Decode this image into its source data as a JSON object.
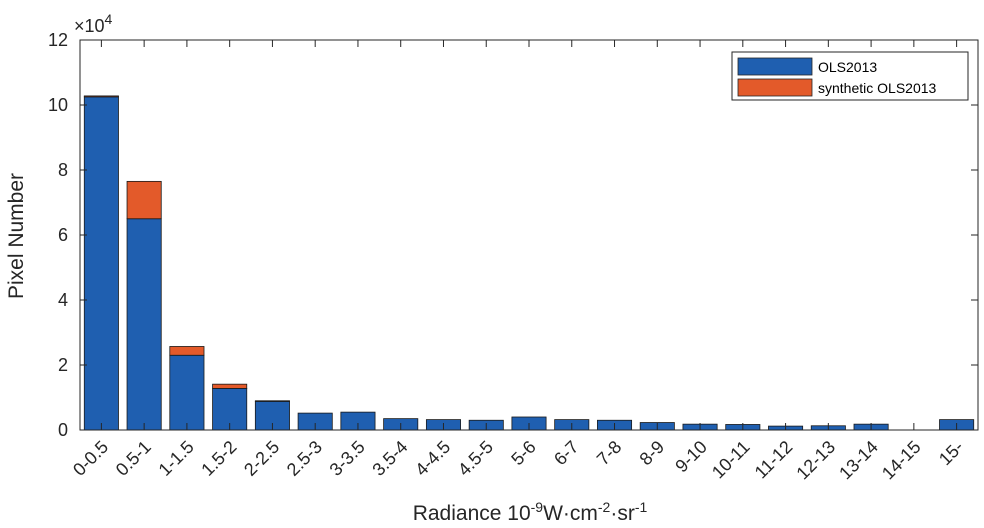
{
  "chart_data": {
    "type": "bar",
    "stacked": true,
    "categories": [
      "0-0.5",
      "0.5-1",
      "1-1.5",
      "1.5-2",
      "2-2.5",
      "2.5-3",
      "3-3.5",
      "3.5-4",
      "4-4.5",
      "4.5-5",
      "5-6",
      "6-7",
      "7-8",
      "8-9",
      "9-10",
      "10-11",
      "11-12",
      "12-13",
      "13-14",
      "14-15",
      "15-"
    ],
    "series": [
      {
        "name": "OLS2013",
        "color": "#1f5fb0",
        "values": [
          10.25,
          6.5,
          2.3,
          1.28,
          0.88,
          0.52,
          0.55,
          0.35,
          0.32,
          0.3,
          0.4,
          0.32,
          0.3,
          0.23,
          0.18,
          0.17,
          0.12,
          0.13,
          0.18,
          0,
          0.32
        ]
      },
      {
        "name": "synthetic OLS2013",
        "color": "#e35a2a",
        "values": [
          0.03,
          1.15,
          0.27,
          0.13,
          0.02,
          0,
          0,
          0,
          0,
          0,
          0,
          0,
          0,
          0,
          0,
          0,
          0,
          0,
          0,
          0,
          0
        ]
      }
    ],
    "ylim": [
      0,
      12
    ],
    "yticks": [
      "0",
      "2",
      "4",
      "6",
      "8",
      "10",
      "12"
    ],
    "yticks_values": [
      0,
      2,
      4,
      6,
      8,
      10,
      12
    ],
    "exponent_label": "×10",
    "exponent_power": "4",
    "ylabel": "Pixel Number",
    "xlabel": {
      "base": "Radiance 10",
      "exp1": "-9",
      "mid1": "W·cm",
      "exp2": "-2",
      "mid2": "·sr",
      "exp3": "-1"
    },
    "legend_position": "top-right",
    "grid": false
  }
}
